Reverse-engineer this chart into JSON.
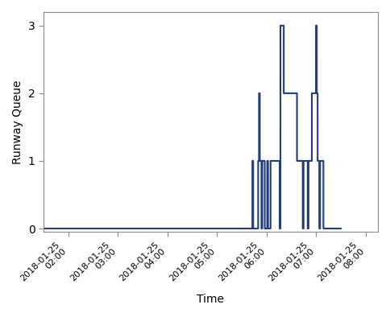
{
  "title": "",
  "xlabel": "Time",
  "ylabel": "Runway Queue",
  "line_color": "#1f3d7a",
  "line_width": 1.5,
  "ylim": [
    -0.05,
    3.2
  ],
  "yticks": [
    0,
    1,
    2,
    3
  ],
  "background_color": "#ffffff",
  "time_data": [
    "2018-01-25 01:30:00",
    "2018-01-25 05:43:00",
    "2018-01-25 05:43:01",
    "2018-01-25 05:44:00",
    "2018-01-25 05:44:01",
    "2018-01-25 05:50:00",
    "2018-01-25 05:50:01",
    "2018-01-25 05:51:00",
    "2018-01-25 05:51:01",
    "2018-01-25 05:52:00",
    "2018-01-25 05:52:01",
    "2018-01-25 05:54:00",
    "2018-01-25 05:54:01",
    "2018-01-25 05:55:00",
    "2018-01-25 05:55:01",
    "2018-01-25 05:58:00",
    "2018-01-25 05:58:01",
    "2018-01-25 06:01:00",
    "2018-01-25 06:01:01",
    "2018-01-25 06:02:00",
    "2018-01-25 06:02:01",
    "2018-01-25 06:05:00",
    "2018-01-25 06:05:01",
    "2018-01-25 06:16:00",
    "2018-01-25 06:16:01",
    "2018-01-25 06:17:00",
    "2018-01-25 06:17:01",
    "2018-01-25 06:21:00",
    "2018-01-25 06:21:01",
    "2018-01-25 06:37:00",
    "2018-01-25 06:37:01",
    "2018-01-25 06:44:00",
    "2018-01-25 06:44:01",
    "2018-01-25 06:45:00",
    "2018-01-25 06:45:01",
    "2018-01-25 06:50:00",
    "2018-01-25 06:50:01",
    "2018-01-25 06:51:00",
    "2018-01-25 06:51:01",
    "2018-01-25 06:55:00",
    "2018-01-25 06:55:01",
    "2018-01-25 07:00:00",
    "2018-01-25 07:00:01",
    "2018-01-25 07:01:00",
    "2018-01-25 07:01:01",
    "2018-01-25 07:02:00",
    "2018-01-25 07:02:01",
    "2018-01-25 07:04:00",
    "2018-01-25 07:04:01",
    "2018-01-25 07:05:00",
    "2018-01-25 07:05:01",
    "2018-01-25 07:09:00",
    "2018-01-25 07:09:01",
    "2018-01-25 07:30:00"
  ],
  "queue_data": [
    0,
    0,
    1,
    1,
    0,
    0,
    1,
    1,
    2,
    2,
    1,
    1,
    0,
    0,
    1,
    1,
    0,
    0,
    1,
    1,
    0,
    0,
    1,
    1,
    0,
    0,
    3,
    3,
    2,
    2,
    1,
    1,
    0,
    0,
    1,
    1,
    0,
    0,
    1,
    1,
    2,
    2,
    3,
    3,
    2,
    2,
    1,
    1,
    0,
    0,
    1,
    1,
    0,
    0
  ],
  "xmin": "2018-01-25 01:30:00",
  "xmax": "2018-01-25 08:15:00",
  "xtick_times": [
    "2018-01-25 02:00:00",
    "2018-01-25 03:00:00",
    "2018-01-25 04:00:00",
    "2018-01-25 05:00:00",
    "2018-01-25 06:00:00",
    "2018-01-25 07:00:00",
    "2018-01-25 08:00:00"
  ],
  "xtick_labels": [
    "2018-01-25 02:00",
    "2018-01-25 03:00",
    "2018-01-25 04:00",
    "2018-01-25 05:00",
    "2018-01-25 06:00",
    "2018-01-25 07:00",
    "2018-01-25 08:00"
  ]
}
